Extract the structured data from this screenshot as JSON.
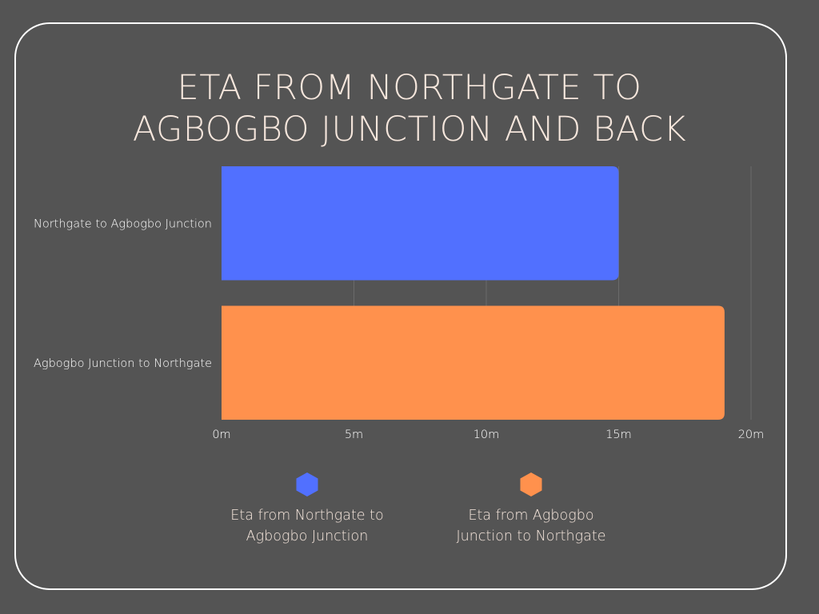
{
  "chart_data": {
    "type": "bar",
    "orientation": "horizontal",
    "title": "ETA FROM NORTHGATE TO AGBOGBO JUNCTION AND BACK",
    "title_lines": [
      "ETA FROM NORTHGATE TO",
      "AGBOGBO JUNCTION AND BACK"
    ],
    "categories": [
      "Northgate to Agbogbo Junction",
      "Agbogbo Junction to Northgate"
    ],
    "series": [
      {
        "name": "Eta from Northgate to Agbogbo Junction",
        "values": [
          15,
          null
        ],
        "color": "#5170ff"
      },
      {
        "name": "Eta from Agbogbo Junction to Northgate",
        "values": [
          null,
          19
        ],
        "color": "#ff914d"
      }
    ],
    "xlim": [
      0,
      20
    ],
    "x_ticks": [
      0,
      5,
      10,
      15,
      20
    ],
    "x_tick_labels": [
      "0m",
      "5m",
      "10m",
      "15m",
      "20m"
    ],
    "xlabel": "",
    "ylabel": "",
    "grid": "vertical",
    "legend": {
      "placement": "bottom",
      "items": [
        {
          "label_lines": [
            "Eta from Northgate to",
            "Agbogbo Junction"
          ],
          "color": "#5170ff",
          "marker": "hexagon"
        },
        {
          "label_lines": [
            "Eta from Agbogbo",
            "Junction to Northgate"
          ],
          "color": "#ff914d",
          "marker": "hexagon"
        }
      ]
    },
    "colors": {
      "background": "#545454",
      "text": "#f5e6dc",
      "axis_text": "#ffffff",
      "grid": "#6a6a6a"
    }
  }
}
